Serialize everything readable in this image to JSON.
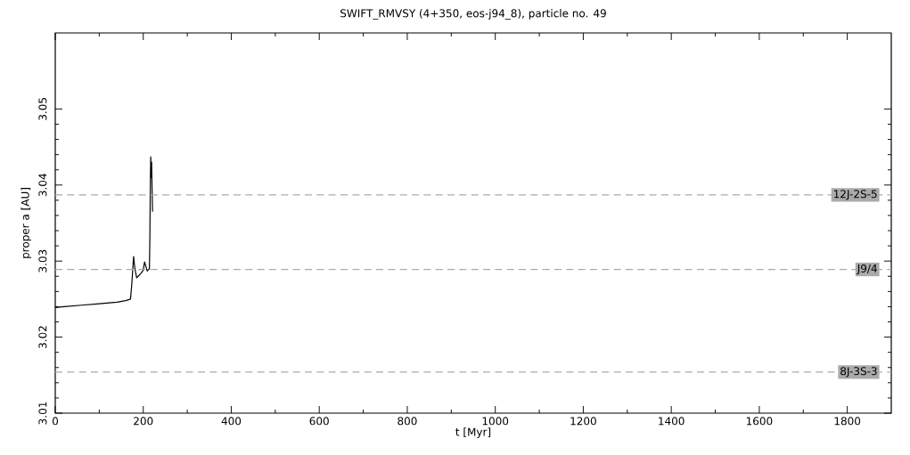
{
  "chart_data": {
    "type": "line",
    "title": "SWIFT_RMVSY (4+350, eos-j94_8), particle no. 49",
    "xlabel": "t [Myr]",
    "ylabel": "proper a [AU]",
    "xlim": [
      0,
      1900
    ],
    "ylim": [
      3.01,
      3.06
    ],
    "xticks": [
      0,
      200,
      400,
      600,
      800,
      1000,
      1200,
      1400,
      1600,
      1800
    ],
    "yticks": [
      3.01,
      3.02,
      3.03,
      3.04,
      3.05
    ],
    "series": [
      {
        "color": "#000000",
        "x": [
          0,
          20,
          60,
          100,
          140,
          160,
          171,
          174,
          178,
          181,
          185,
          190,
          195,
          200,
          203,
          206,
          209,
          212,
          214,
          215,
          216,
          217,
          218,
          219,
          220,
          221
        ],
        "values": [
          3.0239,
          3.024,
          3.0242,
          3.0244,
          3.0246,
          3.0248,
          3.025,
          3.027,
          3.0306,
          3.029,
          3.0278,
          3.0281,
          3.0284,
          3.0288,
          3.0299,
          3.0293,
          3.0287,
          3.0289,
          3.029,
          3.033,
          3.04,
          3.0437,
          3.041,
          3.043,
          3.0395,
          3.0365
        ]
      }
    ],
    "ref_lines": [
      {
        "axis": "y",
        "value": 3.0387,
        "label": "12J-2S-5",
        "color": "#aaaaaa",
        "line_style": "dashed"
      },
      {
        "axis": "y",
        "value": 3.0289,
        "label": "J9/4",
        "color": "#aaaaaa",
        "line_style": "dashed"
      },
      {
        "axis": "y",
        "value": 3.0154,
        "label": "8J-3S-3",
        "color": "#aaaaaa",
        "line_style": "dashed"
      }
    ],
    "marker": "none",
    "line_style": "solid",
    "grid": false
  }
}
